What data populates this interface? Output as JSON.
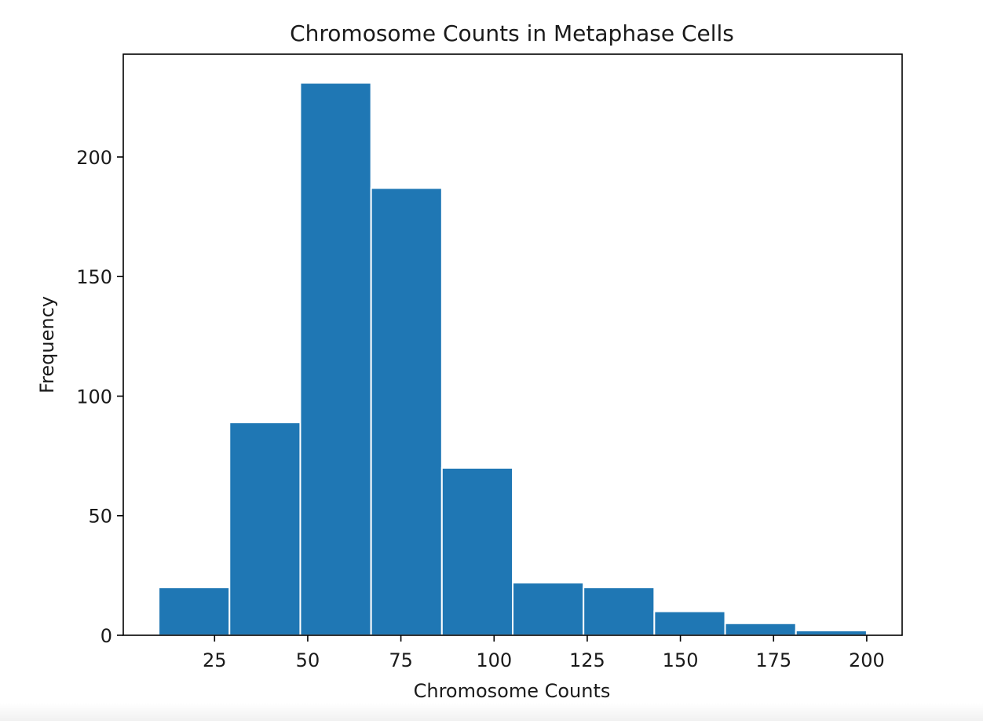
{
  "chart_data": {
    "type": "bar",
    "title": "Chromosome Counts in Metaphase Cells",
    "xlabel": "Chromosome Counts",
    "ylabel": "Frequency",
    "bins": [
      {
        "start": 10,
        "end": 29,
        "count": 20
      },
      {
        "start": 29,
        "end": 48,
        "count": 89
      },
      {
        "start": 48,
        "end": 67,
        "count": 231
      },
      {
        "start": 67,
        "end": 86,
        "count": 187
      },
      {
        "start": 86,
        "end": 105,
        "count": 70
      },
      {
        "start": 105,
        "end": 124,
        "count": 22
      },
      {
        "start": 124,
        "end": 143,
        "count": 20
      },
      {
        "start": 143,
        "end": 162,
        "count": 10
      },
      {
        "start": 162,
        "end": 181,
        "count": 5
      },
      {
        "start": 181,
        "end": 200,
        "count": 2
      }
    ],
    "xlim": [
      0.5,
      209.5
    ],
    "ylim": [
      0,
      243
    ],
    "xticks": [
      25,
      50,
      75,
      100,
      125,
      150,
      175,
      200
    ],
    "yticks": [
      0,
      50,
      100,
      150,
      200
    ],
    "grid": false,
    "colors": {
      "bar": "#1f77b4",
      "bar_edge": "#ffffff",
      "axis": "#000000"
    }
  }
}
